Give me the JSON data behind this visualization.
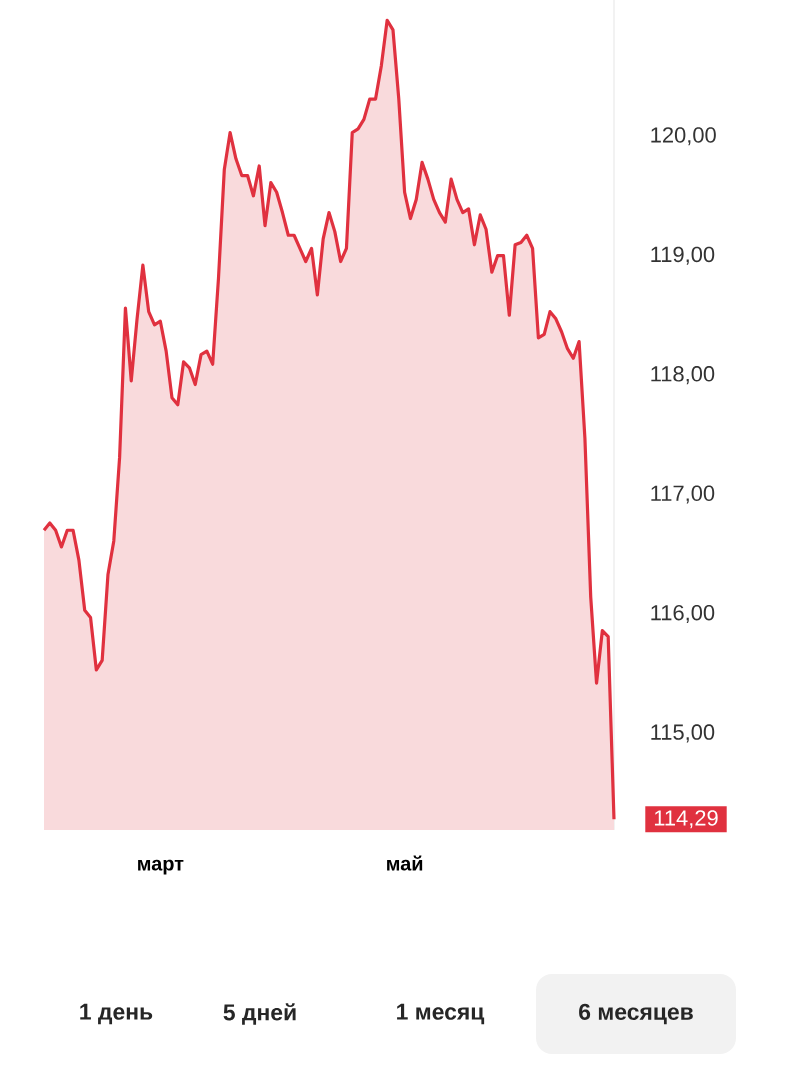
{
  "chart_data": {
    "type": "area",
    "color": "#e0313f",
    "categories": [
      null,
      null,
      null,
      null,
      null,
      null,
      null,
      null,
      null,
      null,
      null,
      null,
      null,
      null,
      null,
      null,
      null,
      null,
      null,
      null,
      "март",
      null,
      null,
      null,
      null,
      null,
      null,
      null,
      null,
      null,
      null,
      null,
      null,
      null,
      null,
      null,
      null,
      null,
      null,
      null,
      null,
      null,
      null,
      null,
      null,
      null,
      null,
      null,
      null,
      null,
      null,
      null,
      null,
      null,
      null,
      null,
      null,
      null,
      null,
      null,
      null,
      null,
      "май",
      null,
      null,
      null,
      null,
      null,
      null,
      null,
      null,
      null,
      null,
      null,
      null,
      null,
      null,
      null,
      null,
      null,
      null,
      null,
      null,
      null,
      null,
      null,
      null,
      null,
      null,
      null,
      null,
      null,
      null,
      null,
      null,
      null,
      null,
      null,
      null
    ],
    "values": [
      116.71,
      116.77,
      116.71,
      116.57,
      116.71,
      116.71,
      116.46,
      116.04,
      115.98,
      115.54,
      115.62,
      116.34,
      116.62,
      117.32,
      118.57,
      117.96,
      118.48,
      118.93,
      118.54,
      118.43,
      118.46,
      118.21,
      117.82,
      117.76,
      118.12,
      118.07,
      117.93,
      118.18,
      118.21,
      118.1,
      118.82,
      119.73,
      120.04,
      119.82,
      119.68,
      119.68,
      119.51,
      119.76,
      119.26,
      119.62,
      119.54,
      119.37,
      119.18,
      119.18,
      119.07,
      118.96,
      119.07,
      118.68,
      119.15,
      119.37,
      119.21,
      118.96,
      119.07,
      120.04,
      120.07,
      120.15,
      120.32,
      120.32,
      120.6,
      120.98,
      120.9,
      120.32,
      119.54,
      119.32,
      119.48,
      119.79,
      119.65,
      119.48,
      119.37,
      119.29,
      119.65,
      119.48,
      119.37,
      119.4,
      119.1,
      119.35,
      119.23,
      118.87,
      119.01,
      119.01,
      118.51,
      119.1,
      119.12,
      119.18,
      119.07,
      118.32,
      118.35,
      118.54,
      118.48,
      118.37,
      118.23,
      118.15,
      118.29,
      117.48,
      116.15,
      115.43,
      115.87,
      115.82,
      114.29
    ],
    "value_labels": [
      null,
      null,
      null,
      null,
      null,
      null,
      null,
      null,
      null,
      null,
      null,
      null,
      null,
      null,
      null,
      null,
      null,
      null,
      null,
      null,
      null,
      null,
      null,
      null,
      null,
      null,
      null,
      null,
      null,
      null,
      null,
      null,
      null,
      null,
      null,
      null,
      null,
      null,
      null,
      null,
      null,
      null,
      null,
      null,
      null,
      null,
      null,
      null,
      null,
      null,
      null,
      null,
      null,
      null,
      null,
      null,
      null,
      null,
      null,
      null,
      null,
      null,
      null,
      null,
      null,
      null,
      null,
      null,
      null,
      null,
      null,
      null,
      null,
      null,
      null,
      null,
      null,
      null,
      null,
      null,
      null,
      null,
      null,
      null,
      null,
      null,
      null,
      null,
      null,
      null,
      null,
      null,
      null,
      null,
      null,
      null,
      null,
      null,
      "114,29"
    ],
    "ylim": [
      114.2,
      121.15
    ],
    "yticks": [
      {
        "value": 115,
        "label": "115,00"
      },
      {
        "value": 116,
        "label": "116,00"
      },
      {
        "value": 117,
        "label": "117,00"
      },
      {
        "value": 118,
        "label": "118,00"
      },
      {
        "value": 119,
        "label": "119,00"
      },
      {
        "value": 120,
        "label": "120,00"
      }
    ],
    "annotations": [
      "1 день",
      "5 дней",
      "1 месяц",
      "6 месяцев"
    ]
  }
}
